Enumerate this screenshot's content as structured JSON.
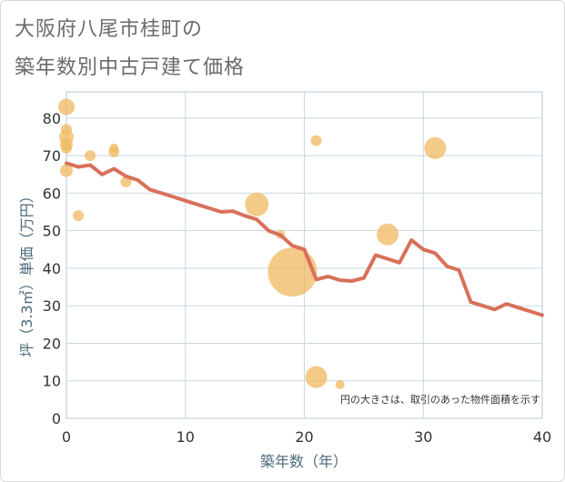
{
  "title_line1": "大阪府八尾市桂町の",
  "title_line2": "築年数別中古戸建て価格",
  "chart_data": {
    "type": "scatter",
    "xlabel": "築年数（年）",
    "ylabel": "坪（3.3㎡）単価（万円）",
    "xlim": [
      0,
      40
    ],
    "ylim": [
      0,
      87
    ],
    "xticks": [
      0,
      10,
      20,
      30,
      40
    ],
    "yticks": [
      0,
      10,
      20,
      30,
      40,
      50,
      60,
      70,
      80
    ],
    "note": "円の大きさは、取引のあった物件面積を示す",
    "bubble_color": "#f0b860",
    "line_color": "#d9705a",
    "bubbles": [
      {
        "x": 0,
        "y": 83,
        "r": 9
      },
      {
        "x": 0,
        "y": 77,
        "r": 6
      },
      {
        "x": 0,
        "y": 75,
        "r": 8
      },
      {
        "x": 0,
        "y": 73,
        "r": 7
      },
      {
        "x": 0,
        "y": 72,
        "r": 6
      },
      {
        "x": 0,
        "y": 66,
        "r": 7
      },
      {
        "x": 1,
        "y": 54,
        "r": 6
      },
      {
        "x": 2,
        "y": 70,
        "r": 6
      },
      {
        "x": 4,
        "y": 72,
        "r": 5
      },
      {
        "x": 4,
        "y": 71,
        "r": 6
      },
      {
        "x": 5,
        "y": 63,
        "r": 6
      },
      {
        "x": 16,
        "y": 57,
        "r": 13
      },
      {
        "x": 18,
        "y": 49,
        "r": 5
      },
      {
        "x": 19,
        "y": 39,
        "r": 27
      },
      {
        "x": 21,
        "y": 74,
        "r": 6
      },
      {
        "x": 21,
        "y": 11,
        "r": 12
      },
      {
        "x": 23,
        "y": 9,
        "r": 5
      },
      {
        "x": 27,
        "y": 49,
        "r": 12
      },
      {
        "x": 31,
        "y": 72,
        "r": 12
      }
    ],
    "trend_line": {
      "x": [
        0,
        1,
        2,
        3,
        4,
        5,
        6,
        7,
        8,
        9,
        10,
        11,
        12,
        13,
        14,
        15,
        16,
        17,
        18,
        19,
        20,
        21,
        22,
        23,
        24,
        25,
        26,
        27,
        28,
        29,
        30,
        31,
        32,
        33,
        34,
        35,
        36,
        37,
        38,
        39,
        40
      ],
      "y": [
        68,
        67,
        67.5,
        65,
        66.5,
        64.5,
        63.5,
        61,
        60,
        59,
        58,
        57,
        56,
        55,
        55.2,
        54,
        53,
        50,
        48.8,
        46,
        45,
        37,
        37.8,
        36.8,
        36.6,
        37.4,
        43.5,
        42.5,
        41.5,
        47.5,
        45,
        44,
        40.5,
        39.5,
        31,
        30,
        29,
        30.5,
        29.5,
        28.5,
        27.5
      ]
    }
  }
}
